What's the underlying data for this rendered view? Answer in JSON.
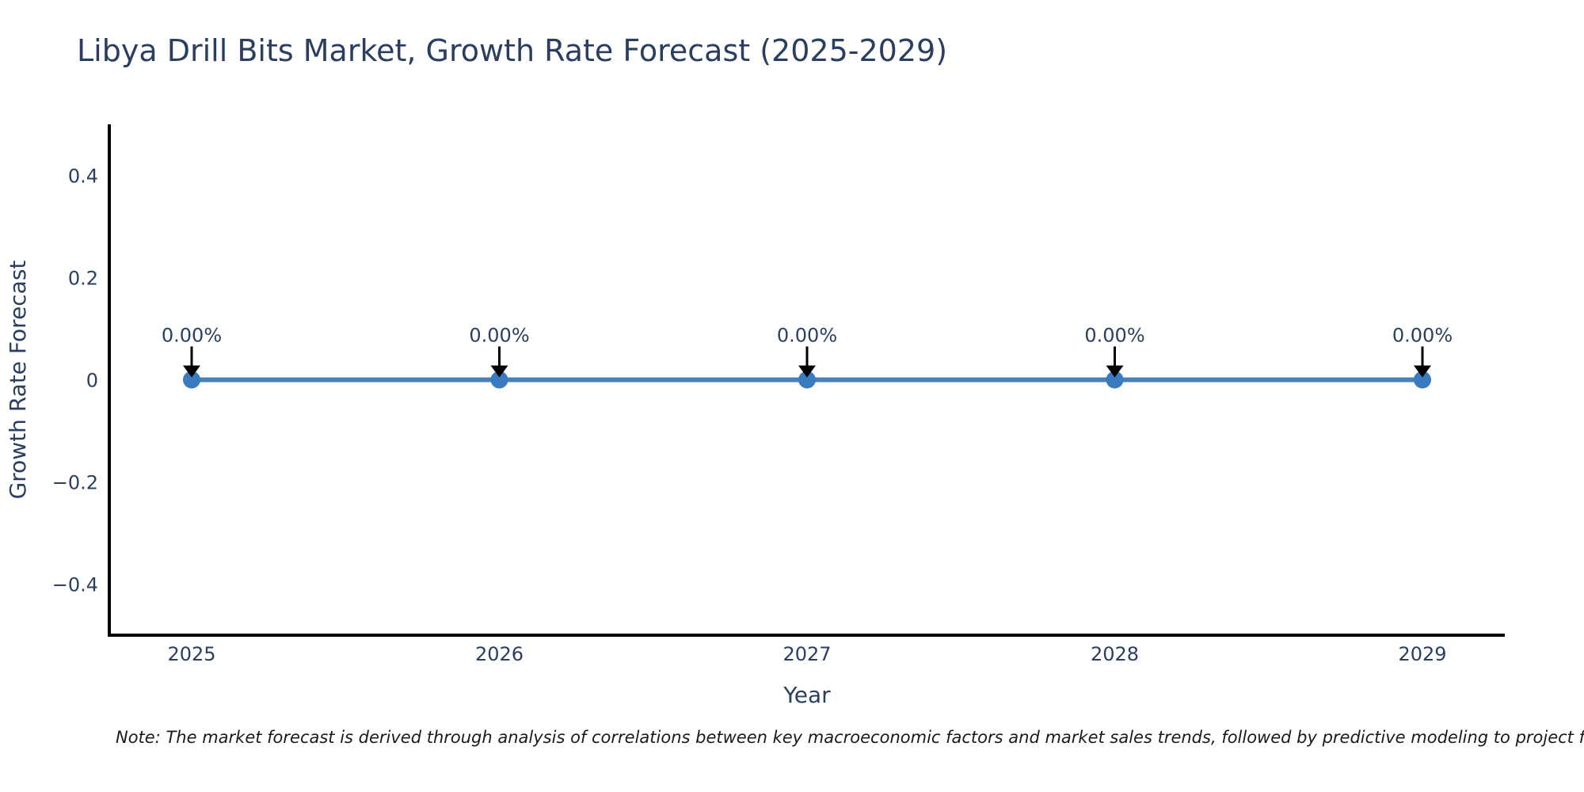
{
  "chart_data": {
    "type": "line",
    "title": "Libya Drill Bits Market, Growth Rate Forecast (2025-2029)",
    "xlabel": "Year",
    "ylabel": "Growth Rate Forecast",
    "categories": [
      "2025",
      "2026",
      "2027",
      "2028",
      "2029"
    ],
    "series": [
      {
        "name": "Growth Rate Forecast",
        "values": [
          0,
          0,
          0,
          0,
          0
        ]
      }
    ],
    "point_labels": [
      "0.00%",
      "0.00%",
      "0.00%",
      "0.00%",
      "0.00%"
    ],
    "ylim": [
      -0.5,
      0.5
    ],
    "yticks": [
      -0.4,
      -0.2,
      0,
      0.2,
      0.4
    ],
    "ytick_labels": [
      "−0.4",
      "−0.2",
      "0",
      "0.2",
      "0.4"
    ],
    "grid": false,
    "legend": "none",
    "line_color": "#4a80b8",
    "marker_color": "#3a7abe",
    "arrow_color": "#000000",
    "axis_color": "#000000",
    "text_color": "#2a3f5f"
  },
  "note": {
    "text": "Note: The market forecast is derived through analysis of correlations between key macroeconomic factors and market sales trends, followed by predictive modeling to project future sales"
  }
}
